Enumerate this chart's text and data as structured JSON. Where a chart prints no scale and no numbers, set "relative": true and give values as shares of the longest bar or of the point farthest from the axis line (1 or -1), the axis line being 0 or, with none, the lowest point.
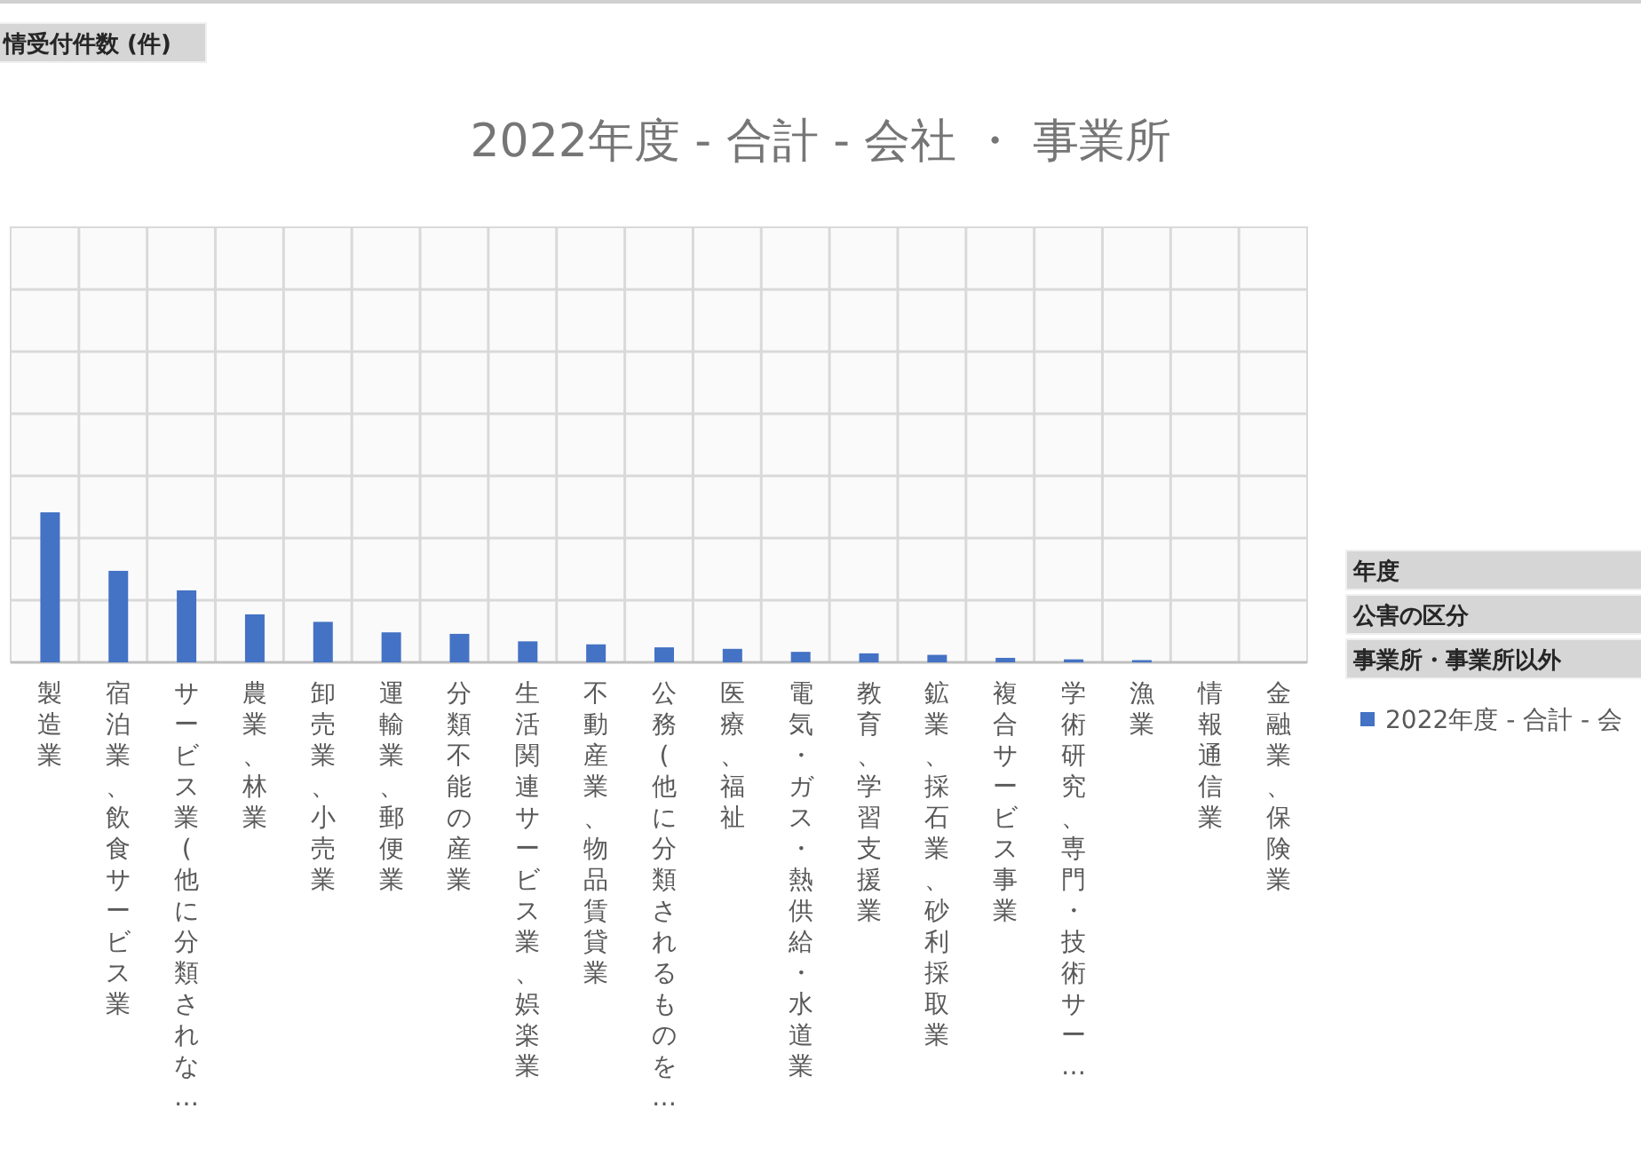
{
  "chart_data": {
    "type": "bar",
    "title": "2022年度 - 合計 - 会社 ・ 事業所",
    "relative": true,
    "grid": true,
    "legend": "right",
    "annotations": [
      "情受付件数 (件)",
      "年度",
      "公害の区分",
      "事業所・事業所以外"
    ],
    "categories": [
      "製造業",
      "宿泊業、飲食サービス業",
      "サービス業(他に分類されな…",
      "農業、林業",
      "卸売業、小売業",
      "運輸業、郵便業",
      "分類不能の産業",
      "生活関連サービス業、娯楽業",
      "不動産業、物品賃貸業",
      "公務(他に分類されるものを…",
      "医療、福祉",
      "電気・ガス・熱供給・水道業",
      "教育、学習支援業",
      "鉱業、採石業、砂利採取業",
      "複合サービス事業",
      "学術研究、専門・技術サー…",
      "漁業",
      "情報通信業",
      "金融業、保険業"
    ],
    "series": [
      {
        "name": "2022年度 - 合計 - 会",
        "color": "#4472c4",
        "values": [
          1,
          0.61,
          0.48,
          0.32,
          0.27,
          0.2,
          0.19,
          0.14,
          0.12,
          0.1,
          0.09,
          0.07,
          0.06,
          0.05,
          0.03,
          0.02,
          0.015,
          0,
          0
        ]
      }
    ]
  }
}
